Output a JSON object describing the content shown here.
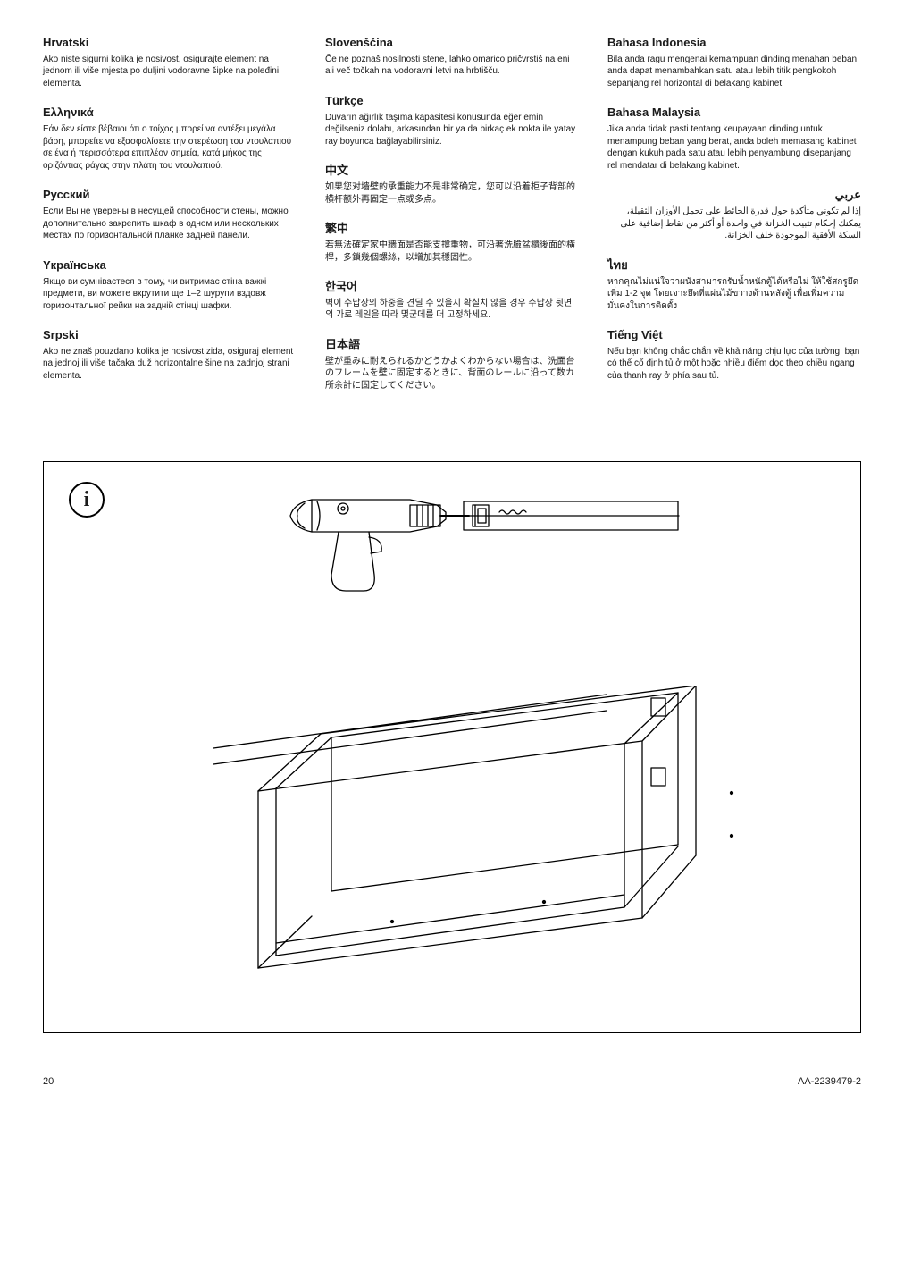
{
  "col1": [
    {
      "lang": "Hrvatski",
      "text": "Ako niste sigurni kolika je nosivost, osigurajte element na jednom ili više mjesta po duljini vodoravne šipke na poleđini elementa."
    },
    {
      "lang": "Ελληνικά",
      "text": "Εάν δεν είστε βέβαιοι ότι ο τοίχος μπορεί να αντέξει μεγάλα βάρη, μπορείτε να εξασφαλίσετε την στερέωση του ντουλαπιού σε ένα ή περισσότερα επιπλέον σημεία, κατά μήκος της οριζόντιας ράγας στην πλάτη του ντουλαπιού."
    },
    {
      "lang": "Русский",
      "text": "Если Вы не уверены в несущей способности стены, можно дополнительно закрепить шкаф в одном или нескольких местах по горизонтальной планке задней панели."
    },
    {
      "lang": "Yкраїнська",
      "text": "Якщо ви сумніваєтеся в тому, чи витримає стіна важкі предмети, ви можете вкрутити ще 1–2 шурупи вздовж горизонтальної рейки на задній стінці шафки."
    },
    {
      "lang": "Srpski",
      "text": "Ako ne znaš pouzdano kolika je nosivost zida, osiguraj element na jednoj ili više tačaka duž horizontalne šine na zadnjoj strani elementa."
    }
  ],
  "col2": [
    {
      "lang": "Slovenščina",
      "text": "Če ne poznaš nosilnosti stene, lahko omarico pričvrstiš na eni ali več točkah na vodoravni letvi na hrbtišču."
    },
    {
      "lang": "Türkçe",
      "text": "Duvarın ağırlık taşıma kapasitesi konusunda eğer emin değilseniz dolabı, arkasından bir ya da birkaç ek nokta ile yatay ray boyunca bağlayabilirsiniz."
    },
    {
      "lang": "中文",
      "text": "如果您对墙壁的承重能力不是非常确定，您可以沿着柜子背部的横杆额外再固定一点或多点。"
    },
    {
      "lang": "繁中",
      "text": "若無法確定家中牆面是否能支撐重物，可沿著洗臉盆櫃後面的橫桿，多鎖幾個螺絲，以增加其穩固性。"
    },
    {
      "lang": "한국어",
      "text": "벽이 수납장의 하중을 견딜 수 있을지 확실치 않을 경우 수납장 뒷면의 가로 레일을 따라 몇군데를 더 고정하세요."
    },
    {
      "lang": "日本語",
      "text": "壁が重みに耐えられるかどうかよくわからない場合は、洗面台のフレームを壁に固定するときに、背面のレールに沿って数カ所余計に固定してください。"
    }
  ],
  "col3": [
    {
      "lang": "Bahasa Indonesia",
      "text": "Bila anda ragu mengenai kemampuan dinding menahan beban, anda dapat menambahkan satu atau lebih titik pengkokoh sepanjang rel horizontal di belakang kabinet."
    },
    {
      "lang": "Bahasa Malaysia",
      "text": "Jika anda tidak pasti tentang keupayaan dinding untuk menampung beban yang berat, anda boleh memasang kabinet dengan kukuh pada satu atau lebih penyambung disepanjang rel mendatar di belakang kabinet."
    },
    {
      "lang": "عربي",
      "text": "إذا لم تكوني متأكدة حول قدرة الحائط على تحمل الأوزان الثقيلة، يمكنك إحكام تثبيت الخزانة في واحدة أو أكثر من نقاط إضافية على السكة الأفقية الموجودة خلف الخزانة.",
      "rtl": true
    },
    {
      "lang": "ไทย",
      "text": "หากคุณไม่แน่ใจว่าผนังสามารถรับน้ำหนักตู้ได้หรือไม่ ให้ใช้สกรูยึดเพิ่ม 1-2 จุด โดยเจาะยึดที่แผ่นไม้ขวางด้านหลังตู้ เพื่อเพิ่มความมั่นคงในการติดตั้ง"
    },
    {
      "lang": "Tiếng Việt",
      "text": "Nếu bạn không chắc chắn về khả năng chịu lực của tường, bạn có thể cố định tủ ở một hoặc nhiều điểm dọc theo chiều ngang của thanh ray ở phía sau tủ."
    }
  ],
  "footer": {
    "page": "20",
    "code": "AA-2239479-2"
  },
  "colors": {
    "text": "#1a1a1a",
    "stroke": "#000000"
  }
}
